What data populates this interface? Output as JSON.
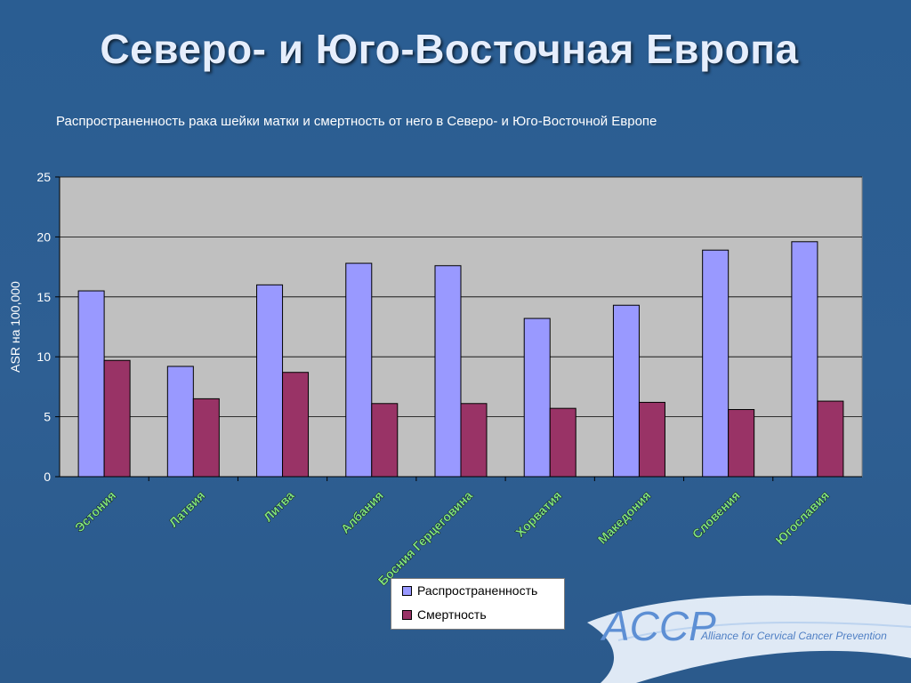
{
  "slide": {
    "title": "Северо- и Юго-Восточная Европа"
  },
  "logo": {
    "mark": "ACCP",
    "text": "Alliance for Cervical Cancer Prevention"
  },
  "colors": {
    "background": "#2b5d91",
    "plot_area": "#c0c0c0",
    "prevalence": "#9999ff",
    "mortality": "#993366"
  },
  "chart_data": {
    "type": "bar",
    "title": "Распространенность рака шейки матки и смертность от него в Северо- и Юго-Восточной Европе",
    "ylabel": "ASR на 100,000",
    "xlabel": "",
    "ylim": [
      0,
      25
    ],
    "yticks": [
      "0",
      "5",
      "10",
      "15",
      "20",
      "25"
    ],
    "categories": [
      "Эстония",
      "Латвия",
      "Литва",
      "Албания",
      "Босния Герцеговина",
      "Хорватия",
      "Македония",
      "Словения",
      "Югославия"
    ],
    "series": [
      {
        "name": "Распространенность",
        "color": "#9999ff",
        "values": [
          15.5,
          9.2,
          16.0,
          17.8,
          17.6,
          13.2,
          14.3,
          18.9,
          19.6
        ]
      },
      {
        "name": "Смертность",
        "color": "#993366",
        "values": [
          9.7,
          6.5,
          8.7,
          6.1,
          6.1,
          5.7,
          6.2,
          5.6,
          6.3
        ]
      }
    ],
    "grid": true,
    "legend": "bottom-center"
  }
}
